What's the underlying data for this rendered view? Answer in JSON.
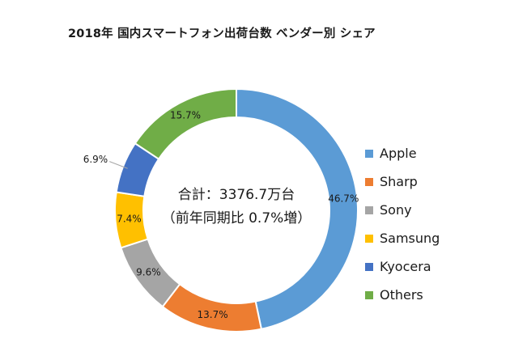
{
  "chart_data": {
    "type": "pie",
    "variant": "donut",
    "title": "2018年 国内スマートフォン出荷台数 ベンダー別 シェア",
    "center_label_total": "合計：3376.7万台",
    "center_label_growth": "（前年同期比 0.7%増）",
    "categories": [
      "Apple",
      "Sharp",
      "Sony",
      "Samsung",
      "Kyocera",
      "Others"
    ],
    "values": [
      46.7,
      13.7,
      9.6,
      7.4,
      6.9,
      15.7
    ],
    "data_labels": [
      "46.7%",
      "13.7%",
      "9.6%",
      "7.4%",
      "6.9%",
      "15.7%"
    ],
    "colors": [
      "#5B9BD5",
      "#ED7D31",
      "#A5A5A5",
      "#FFC000",
      "#4472C4",
      "#70AD47"
    ],
    "legend_position": "right"
  }
}
